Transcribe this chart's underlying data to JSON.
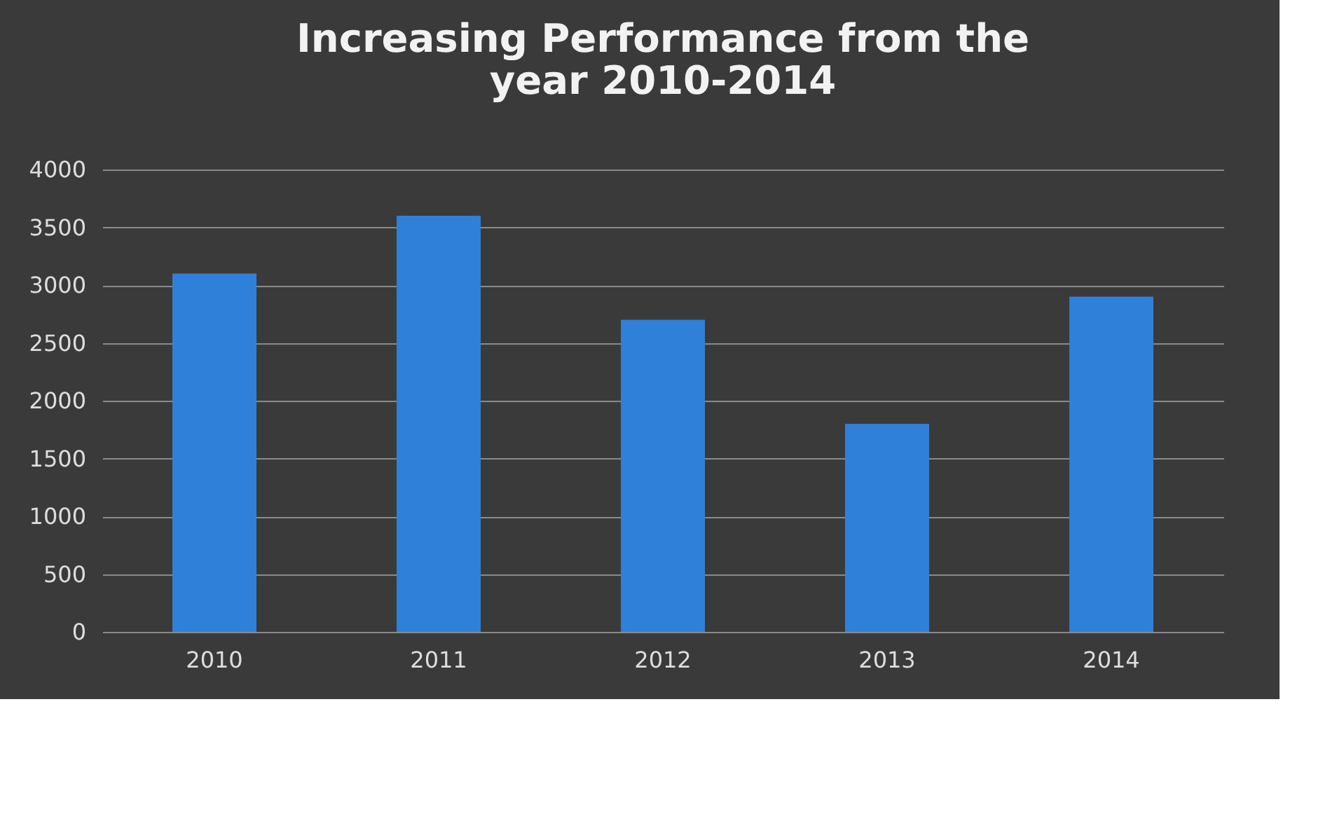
{
  "chart_data": {
    "type": "bar",
    "title": [
      "Increasing Performance from the",
      "year 2010-2014"
    ],
    "categories": [
      "2010",
      "2011",
      "2012",
      "2013",
      "2014"
    ],
    "values": [
      3100,
      3600,
      2700,
      1800,
      2900
    ],
    "color": "#2f80d8",
    "ylim": [
      0,
      4000
    ],
    "yticks": [
      0,
      500,
      1000,
      1500,
      2000,
      2500,
      3000,
      3500,
      4000
    ],
    "grid": "y"
  }
}
